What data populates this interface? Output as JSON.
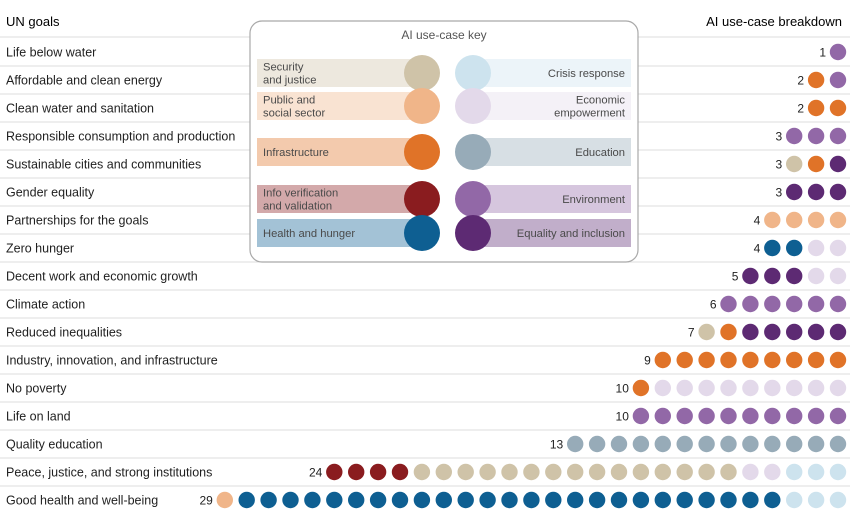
{
  "chart_data": {
    "type": "dot-matrix",
    "left_header": "UN goals",
    "right_header": "AI use-case breakdown",
    "categories": {
      "security": {
        "label": [
          "Security",
          "and justice"
        ],
        "color": "#cfc3a8"
      },
      "crisis": {
        "label": [
          "Crisis response"
        ],
        "color": "#cde3ee"
      },
      "public": {
        "label": [
          "Public and",
          "social sector"
        ],
        "color": "#f0b589"
      },
      "economic": {
        "label": [
          "Economic",
          "empowerment"
        ],
        "color": "#e3d9ea"
      },
      "infrastructure": {
        "label": [
          "Infrastructure"
        ],
        "color": "#e07328"
      },
      "education": {
        "label": [
          "Education"
        ],
        "color": "#97abb8"
      },
      "info": {
        "label": [
          "Info verification",
          "and validation"
        ],
        "color": "#8a1c1f"
      },
      "environment": {
        "label": [
          "Environment"
        ],
        "color": "#9268a7"
      },
      "health": {
        "label": [
          "Health and hunger"
        ],
        "color": "#0e5f92"
      },
      "equality": {
        "label": [
          "Equality and inclusion"
        ],
        "color": "#5d2a73"
      }
    },
    "key": {
      "title": "AI use-case key",
      "left": [
        "security",
        "public",
        "infrastructure",
        "info",
        "health"
      ],
      "right": [
        "crisis",
        "economic",
        "education",
        "environment",
        "equality"
      ]
    },
    "rows": [
      {
        "goal": "Life below water",
        "count": 1,
        "dots": [
          "environment"
        ]
      },
      {
        "goal": "Affordable and clean energy",
        "count": 2,
        "dots": [
          "infrastructure",
          "environment"
        ]
      },
      {
        "goal": "Clean water and sanitation",
        "count": 2,
        "dots": [
          "infrastructure",
          "infrastructure"
        ]
      },
      {
        "goal": "Responsible consumption and production",
        "count": 3,
        "dots": [
          "environment",
          "environment",
          "environment"
        ]
      },
      {
        "goal": "Sustainable cities and communities",
        "count": 3,
        "dots": [
          "security",
          "infrastructure",
          "equality"
        ]
      },
      {
        "goal": "Gender equality",
        "count": 3,
        "dots": [
          "equality",
          "equality",
          "equality"
        ]
      },
      {
        "goal": "Partnerships for the goals",
        "count": 4,
        "dots": [
          "public",
          "public",
          "public",
          "public"
        ]
      },
      {
        "goal": "Zero hunger",
        "count": 4,
        "dots": [
          "health",
          "health",
          "economic",
          "economic"
        ]
      },
      {
        "goal": "Decent work and economic growth",
        "count": 5,
        "dots": [
          "equality",
          "equality",
          "equality",
          "economic",
          "economic"
        ]
      },
      {
        "goal": "Climate action",
        "count": 6,
        "dots": [
          "environment",
          "environment",
          "environment",
          "environment",
          "environment",
          "environment"
        ]
      },
      {
        "goal": "Reduced inequalities",
        "count": 7,
        "dots": [
          "security",
          "infrastructure",
          "equality",
          "equality",
          "equality",
          "equality",
          "equality"
        ]
      },
      {
        "goal": "Industry, innovation, and infrastructure",
        "count": 9,
        "dots": [
          "infrastructure",
          "infrastructure",
          "infrastructure",
          "infrastructure",
          "infrastructure",
          "infrastructure",
          "infrastructure",
          "infrastructure",
          "infrastructure"
        ]
      },
      {
        "goal": "No poverty",
        "count": 10,
        "dots": [
          "infrastructure",
          "economic",
          "economic",
          "economic",
          "economic",
          "economic",
          "economic",
          "economic",
          "economic",
          "economic"
        ]
      },
      {
        "goal": "Life on land",
        "count": 10,
        "dots": [
          "environment",
          "environment",
          "environment",
          "environment",
          "environment",
          "environment",
          "environment",
          "environment",
          "environment",
          "environment"
        ]
      },
      {
        "goal": "Quality education",
        "count": 13,
        "dots": [
          "education",
          "education",
          "education",
          "education",
          "education",
          "education",
          "education",
          "education",
          "education",
          "education",
          "education",
          "education",
          "education"
        ]
      },
      {
        "goal": "Peace, justice, and strong institutions",
        "count": 24,
        "dots": [
          "info",
          "info",
          "info",
          "info",
          "security",
          "security",
          "security",
          "security",
          "security",
          "security",
          "security",
          "security",
          "security",
          "security",
          "security",
          "security",
          "security",
          "security",
          "security",
          "economic",
          "economic",
          "crisis",
          "crisis",
          "crisis"
        ]
      },
      {
        "goal": "Good health and well-being",
        "count": 29,
        "dots": [
          "public",
          "health",
          "health",
          "health",
          "health",
          "health",
          "health",
          "health",
          "health",
          "health",
          "health",
          "health",
          "health",
          "health",
          "health",
          "health",
          "health",
          "health",
          "health",
          "health",
          "health",
          "health",
          "health",
          "health",
          "health",
          "health",
          "crisis",
          "crisis",
          "crisis"
        ]
      }
    ]
  }
}
